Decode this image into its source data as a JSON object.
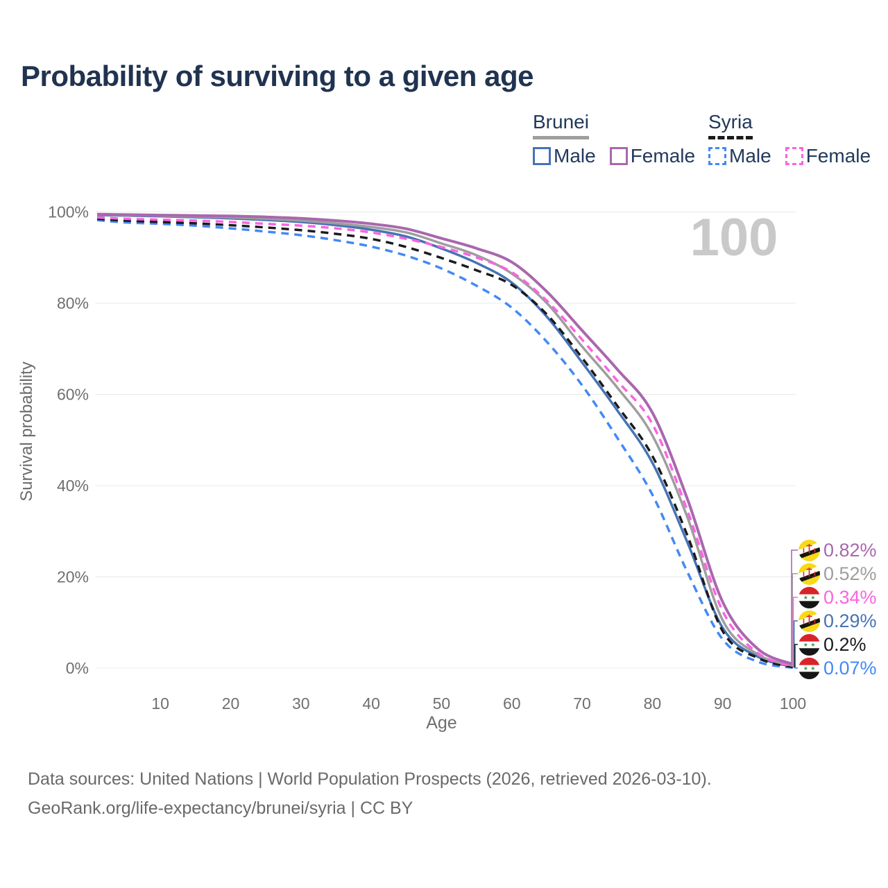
{
  "title": "Probability of surviving to a given age",
  "watermark": "100",
  "legend": {
    "groups": [
      {
        "label": "Brunei",
        "line_style": "solid",
        "underline_color": "#9e9e9e",
        "items": [
          {
            "label": "Male",
            "color": "#4673b4"
          },
          {
            "label": "Female",
            "color": "#a967ae"
          }
        ]
      },
      {
        "label": "Syria",
        "line_style": "dashed",
        "underline_color": "#1b1b1b",
        "items": [
          {
            "label": "Male",
            "color": "#4289f5"
          },
          {
            "label": "Female",
            "color": "#fb63e1"
          }
        ]
      }
    ]
  },
  "chart_data": {
    "type": "line",
    "title": "Probability of surviving to a given age",
    "xlabel": "Age",
    "ylabel": "Survival probability",
    "xlim": [
      1,
      100
    ],
    "ylim": [
      0,
      100
    ],
    "grid": "horizontal",
    "xticks": [
      10,
      20,
      30,
      40,
      50,
      60,
      70,
      80,
      90,
      100
    ],
    "yticks": [
      0,
      20,
      40,
      60,
      80,
      100
    ],
    "ytick_labels": [
      "0%",
      "20%",
      "40%",
      "60%",
      "80%",
      "100%"
    ],
    "ages": [
      1,
      5,
      10,
      15,
      20,
      25,
      30,
      35,
      40,
      45,
      50,
      55,
      60,
      65,
      70,
      75,
      80,
      85,
      90,
      95,
      100
    ],
    "series": [
      {
        "key": "syria_male",
        "name": "Syria Male",
        "color": "#4289f5",
        "dashed": true,
        "values": [
          98.2,
          97.7,
          97.4,
          97.0,
          96.4,
          95.7,
          94.9,
          93.8,
          92.4,
          90.4,
          87.6,
          83.8,
          79.0,
          71.5,
          62.0,
          50.5,
          38.0,
          21.0,
          6.3,
          1.4,
          0.07
        ]
      },
      {
        "key": "brunei_male",
        "name": "Brunei Male",
        "color": "#4673b4",
        "dashed": false,
        "values": [
          99.3,
          99.2,
          99.05,
          98.85,
          98.6,
          98.25,
          97.8,
          97.1,
          96.1,
          94.6,
          92.0,
          88.8,
          84.5,
          77.0,
          67.0,
          56.5,
          45.0,
          27.5,
          8.8,
          2.5,
          0.29
        ]
      },
      {
        "key": "syria_total",
        "name": "Syria",
        "color": "#1b1b1b",
        "dashed": true,
        "values": [
          98.5,
          98.1,
          97.8,
          97.5,
          97.1,
          96.6,
          96.0,
          95.2,
          94.1,
          92.3,
          89.9,
          87.2,
          84.0,
          77.5,
          68.0,
          57.5,
          46.5,
          29.0,
          8.1,
          2.2,
          0.2
        ]
      },
      {
        "key": "brunei_total",
        "name": "Brunei",
        "color": "#9e9e9e",
        "dashed": false,
        "values": [
          99.4,
          99.3,
          99.2,
          99.0,
          98.8,
          98.5,
          98.1,
          97.5,
          96.7,
          95.5,
          93.1,
          90.5,
          86.5,
          80.0,
          70.5,
          61.5,
          51.0,
          33.0,
          10.5,
          3.0,
          0.52
        ]
      },
      {
        "key": "syria_female",
        "name": "Syria Female",
        "color": "#fb63e1",
        "dashed": true,
        "values": [
          98.8,
          98.5,
          98.3,
          98.1,
          97.8,
          97.4,
          97.0,
          96.4,
          95.5,
          94.1,
          92.3,
          90.0,
          86.8,
          80.5,
          72.0,
          63.0,
          53.5,
          34.5,
          12.5,
          3.3,
          0.34
        ]
      },
      {
        "key": "brunei_female",
        "name": "Brunei Female",
        "color": "#a967ae",
        "dashed": false,
        "values": [
          99.5,
          99.4,
          99.3,
          99.2,
          99.1,
          98.9,
          98.6,
          98.1,
          97.4,
          96.3,
          94.2,
          92.0,
          89.0,
          82.5,
          74.0,
          65.5,
          56.0,
          37.0,
          14.5,
          4.2,
          0.82
        ]
      }
    ]
  },
  "end_labels": [
    {
      "series": "brunei_female",
      "value": "0.82%",
      "color": "#a967ae",
      "flag": "brunei"
    },
    {
      "series": "brunei_total",
      "value": "0.52%",
      "color": "#9e9e9e",
      "flag": "brunei"
    },
    {
      "series": "syria_female",
      "value": "0.34%",
      "color": "#fb63e1",
      "flag": "syria"
    },
    {
      "series": "brunei_male",
      "value": "0.29%",
      "color": "#4673b4",
      "flag": "brunei"
    },
    {
      "series": "syria_total",
      "value": "0.2%",
      "color": "#1b1b1b",
      "flag": "syria"
    },
    {
      "series": "syria_male",
      "value": "0.07%",
      "color": "#4289f5",
      "flag": "syria"
    }
  ],
  "icons": {
    "brunei_flag": {
      "yellow": "#f7d917",
      "white": "#ffffff",
      "black": "#141414",
      "red": "#d62d2d"
    },
    "syria_flag": {
      "red": "#d8232a",
      "white": "#ffffff",
      "black": "#151515",
      "green": "#2f9e44"
    }
  },
  "footer": {
    "line1": "Data sources: United Nations | World Population Prospects (2026, retrieved 2026-03-10).",
    "line2": "GeoRank.org/life-expectancy/brunei/syria | CC BY"
  }
}
